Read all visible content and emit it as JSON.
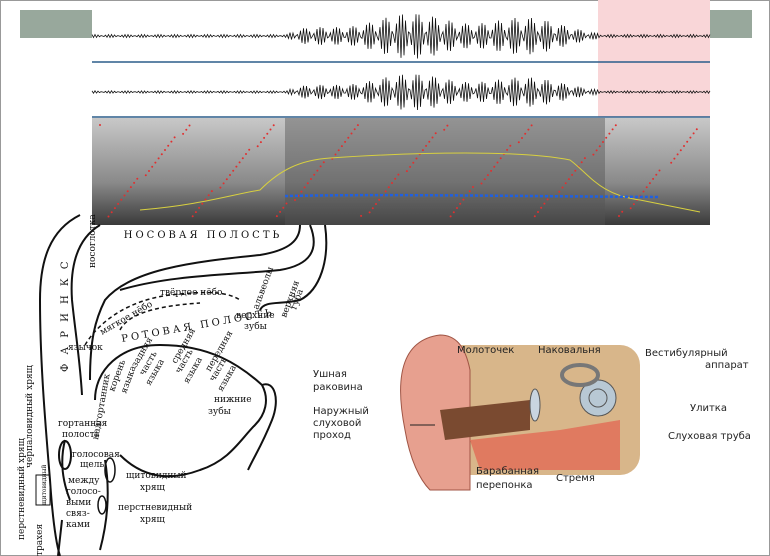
{
  "vocal_tract": {
    "nasal_cavity": "НОСОВАЯ ПОЛОСТЬ",
    "nasopharynx": "носоглотка",
    "pharynx": "Ф А Р И Н К С",
    "hard_palate": "твёрдое нёбо",
    "soft_palate": "мягкое нёбо",
    "uvula": "язычок",
    "oral_cavity": "РОТОВАЯ ПОЛОСТЬ",
    "alveoli": "альвеолы",
    "upper_lip": [
      "верхняя",
      "губа"
    ],
    "upper_teeth": [
      "верхние",
      "зубы"
    ],
    "tongue_back": [
      "задняя",
      "часть",
      "языка"
    ],
    "tongue_middle": [
      "средняя",
      "часть",
      "языка"
    ],
    "tongue_front": [
      "передняя",
      "часть",
      "языка"
    ],
    "tongue_root": [
      "корень",
      "языка"
    ],
    "lower_teeth": [
      "нижние",
      "зубы"
    ],
    "epiglottis": "надгортанник",
    "laryngeal_cavity": [
      "гортанная",
      "полость"
    ],
    "glottis": [
      "голосовая",
      "щель"
    ],
    "between_cords": [
      "между",
      "голосо-",
      "выми",
      "связ-",
      "ками"
    ],
    "arytenoid": "черпаловидный хрящ",
    "cricoid_left": "перстневидный хрящ",
    "thyroid_small": "щитовидный",
    "trachea": "трахея",
    "thyroid": [
      "щитовидный",
      "хрящ"
    ],
    "cricoid": [
      "перстневидный",
      "хрящ"
    ]
  },
  "ear": {
    "malleus": "Молоточек",
    "incus": "Наковальня",
    "vestibular": [
      "Вестибулярный",
      "аппарат"
    ],
    "auricle": [
      "Ушная",
      "раковина"
    ],
    "canal": [
      "Наружный",
      "слуховой",
      "проход"
    ],
    "cochlea": "Улитка",
    "tube": "Слуховая труба",
    "eardrum": [
      "Барабанная",
      "перепонка"
    ],
    "stapes": "Стремя"
  }
}
